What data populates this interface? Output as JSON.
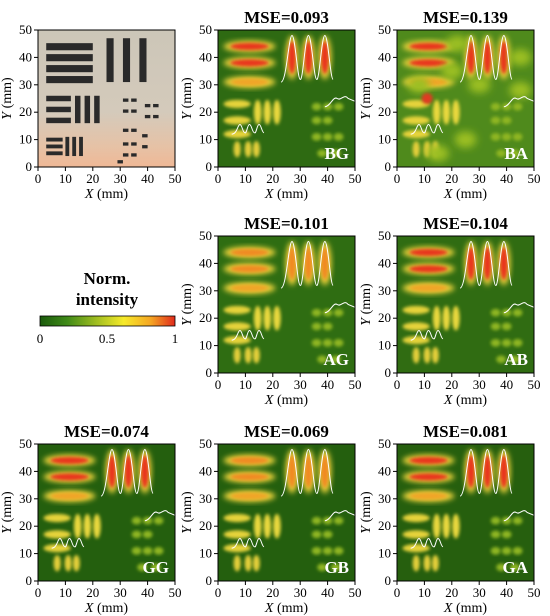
{
  "axis": {
    "x_label": "X (mm)",
    "y_label": "Y (mm)",
    "ticks": [
      "0",
      "10",
      "20",
      "30",
      "40",
      "50"
    ],
    "range": [
      0,
      50
    ]
  },
  "colorbar": {
    "title_line1": "Norm.",
    "title_line2": "intensity",
    "tick_labels": [
      "0",
      "0.5",
      "1"
    ],
    "colors": [
      "#1a5a0c",
      "#3f8a18",
      "#aec522",
      "#f6ea2a",
      "#f5a623",
      "#e02a1c"
    ]
  },
  "panels": [
    {
      "id": "photo",
      "type": "photograph",
      "mse": "",
      "tag": ""
    },
    {
      "id": "BG",
      "type": "heatmap",
      "mse": "MSE=0.093",
      "tag": "BG"
    },
    {
      "id": "BA",
      "type": "heatmap",
      "mse": "MSE=0.139",
      "tag": "BA"
    },
    {
      "id": "AG",
      "type": "heatmap",
      "mse": "MSE=0.101",
      "tag": "AG"
    },
    {
      "id": "AB",
      "type": "heatmap",
      "mse": "MSE=0.104",
      "tag": "AB"
    },
    {
      "id": "GG",
      "type": "heatmap",
      "mse": "MSE=0.074",
      "tag": "GG"
    },
    {
      "id": "GB",
      "type": "heatmap",
      "mse": "MSE=0.069",
      "tag": "GB"
    },
    {
      "id": "GA",
      "type": "heatmap",
      "mse": "MSE=0.081",
      "tag": "GA"
    }
  ],
  "chart_data": {
    "type": "heatmap",
    "xlabel": "X (mm)",
    "ylabel": "Y (mm)",
    "xlim": [
      0,
      50
    ],
    "ylim": [
      0,
      50
    ],
    "colorbar_range": [
      0,
      1
    ],
    "series": [
      {
        "name": "BG",
        "mse": 0.093
      },
      {
        "name": "BA",
        "mse": 0.139
      },
      {
        "name": "AG",
        "mse": 0.101
      },
      {
        "name": "AB",
        "mse": 0.104
      },
      {
        "name": "GG",
        "mse": 0.074
      },
      {
        "name": "GB",
        "mse": 0.069
      },
      {
        "name": "GA",
        "mse": 0.081
      }
    ]
  }
}
